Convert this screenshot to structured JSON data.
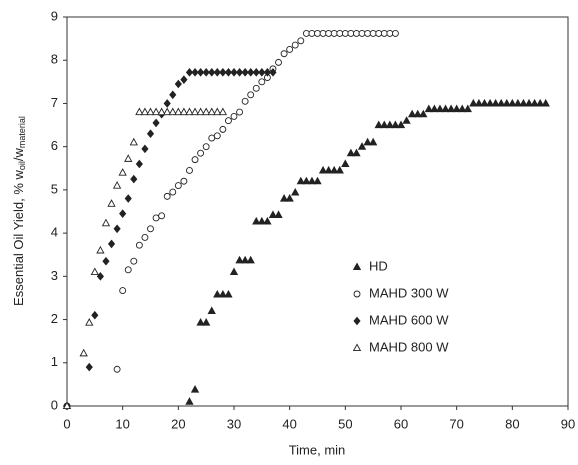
{
  "chart_data": {
    "type": "scatter",
    "xlabel": "Time, min",
    "ylabel_parts": [
      "Essential Oil Yield, % w",
      "oil",
      "/w",
      "material"
    ],
    "xlim": [
      0,
      90
    ],
    "xticks": [
      0,
      10,
      20,
      30,
      40,
      50,
      60,
      70,
      80,
      90
    ],
    "ylim": [
      0,
      9
    ],
    "yticks": [
      0,
      1,
      2,
      3,
      4,
      5,
      6,
      7,
      8,
      9
    ],
    "grid": false,
    "legend": "center right",
    "series": [
      {
        "name": "HD",
        "color": "#222222",
        "marker": "triangle",
        "filled": true,
        "x": [
          0,
          22,
          23,
          24,
          25,
          26,
          27,
          28,
          29,
          30,
          31,
          32,
          33,
          34,
          35,
          36,
          37,
          38,
          39,
          40,
          41,
          42,
          43,
          44,
          45,
          46,
          47,
          48,
          49,
          50,
          51,
          52,
          53,
          54,
          55,
          56,
          57,
          58,
          59,
          60,
          61,
          62,
          63,
          64,
          65,
          66,
          67,
          68,
          69,
          70,
          71,
          72,
          73,
          74,
          75,
          76,
          77,
          78,
          79,
          80,
          81,
          82,
          83,
          84,
          85,
          86
        ],
        "values": [
          0,
          0.1,
          0.38,
          1.93,
          1.93,
          2.2,
          2.58,
          2.58,
          2.58,
          3.1,
          3.37,
          3.37,
          3.37,
          4.27,
          4.27,
          4.27,
          4.42,
          4.42,
          4.8,
          4.8,
          4.94,
          5.2,
          5.2,
          5.2,
          5.2,
          5.45,
          5.45,
          5.45,
          5.45,
          5.6,
          5.85,
          5.85,
          6.0,
          6.1,
          6.1,
          6.5,
          6.5,
          6.5,
          6.5,
          6.5,
          6.6,
          6.75,
          6.75,
          6.75,
          6.87,
          6.87,
          6.87,
          6.87,
          6.87,
          6.87,
          6.87,
          6.87,
          7.0,
          7.0,
          7.0,
          7.0,
          7.0,
          7.0,
          7.0,
          7.0,
          7.0,
          7.0,
          7.0,
          7.0,
          7.0,
          7.0
        ]
      },
      {
        "name": "MAHD 300 W",
        "color": "#222222",
        "marker": "circle",
        "filled": false,
        "x": [
          0,
          9,
          10,
          11,
          12,
          13,
          14,
          15,
          16,
          17,
          18,
          19,
          20,
          21,
          22,
          23,
          24,
          25,
          26,
          27,
          28,
          29,
          30,
          31,
          32,
          33,
          34,
          35,
          36,
          37,
          38,
          39,
          40,
          41,
          42,
          43,
          44,
          45,
          46,
          47,
          48,
          49,
          50,
          51,
          52,
          53,
          54,
          55,
          56,
          57,
          58,
          59
        ],
        "values": [
          0,
          0.85,
          2.67,
          3.15,
          3.35,
          3.72,
          3.9,
          4.1,
          4.35,
          4.4,
          4.85,
          4.95,
          5.1,
          5.2,
          5.45,
          5.7,
          5.85,
          6.0,
          6.2,
          6.25,
          6.4,
          6.6,
          6.7,
          6.8,
          7.05,
          7.2,
          7.35,
          7.5,
          7.6,
          7.8,
          7.95,
          8.15,
          8.25,
          8.35,
          8.45,
          8.62,
          8.62,
          8.62,
          8.62,
          8.62,
          8.62,
          8.62,
          8.62,
          8.62,
          8.62,
          8.62,
          8.62,
          8.62,
          8.62,
          8.62,
          8.62,
          8.62
        ]
      },
      {
        "name": "MAHD 600 W",
        "color": "#222222",
        "marker": "diamond",
        "filled": true,
        "x": [
          0,
          4,
          5,
          6,
          7,
          8,
          9,
          10,
          11,
          12,
          13,
          14,
          15,
          16,
          17,
          18,
          19,
          20,
          21,
          22,
          23,
          24,
          25,
          26,
          27,
          28,
          29,
          30,
          31,
          32,
          33,
          34,
          35,
          36,
          37
        ],
        "values": [
          0,
          0.9,
          2.1,
          3.0,
          3.35,
          3.75,
          4.1,
          4.45,
          4.8,
          5.25,
          5.6,
          5.95,
          6.3,
          6.55,
          6.75,
          7.0,
          7.2,
          7.45,
          7.55,
          7.72,
          7.72,
          7.72,
          7.72,
          7.72,
          7.72,
          7.72,
          7.72,
          7.72,
          7.72,
          7.72,
          7.72,
          7.72,
          7.72,
          7.72,
          7.72
        ]
      },
      {
        "name": "MAHD 800 W",
        "color": "#222222",
        "marker": "triangle",
        "filled": false,
        "x": [
          0,
          3,
          4,
          5,
          6,
          7,
          8,
          9,
          10,
          11,
          12,
          13,
          14,
          15,
          16,
          17,
          18,
          19,
          20,
          21,
          22,
          23,
          24,
          25,
          26,
          27,
          28
        ],
        "values": [
          0,
          1.22,
          1.93,
          3.1,
          3.6,
          4.23,
          4.68,
          5.1,
          5.4,
          5.72,
          6.1,
          6.8,
          6.8,
          6.8,
          6.8,
          6.8,
          6.8,
          6.8,
          6.8,
          6.8,
          6.8,
          6.8,
          6.8,
          6.8,
          6.8,
          6.8,
          6.8
        ]
      }
    ]
  }
}
